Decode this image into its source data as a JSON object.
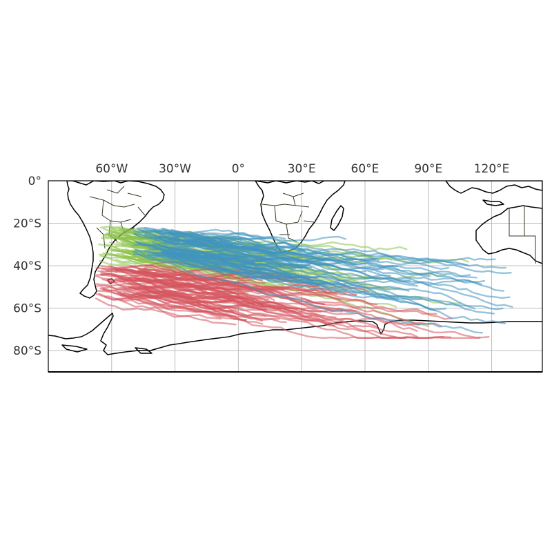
{
  "map": {
    "extent": {
      "lon_min": -90,
      "lon_max": 144,
      "lat_min": -90,
      "lat_max": 0
    },
    "x_ticks": [
      {
        "lon": -60,
        "label": "60°W"
      },
      {
        "lon": -30,
        "label": "30°W"
      },
      {
        "lon": 0,
        "label": "0°"
      },
      {
        "lon": 30,
        "label": "30°E"
      },
      {
        "lon": 60,
        "label": "60°E"
      },
      {
        "lon": 90,
        "label": "90°E"
      },
      {
        "lon": 120,
        "label": "120°E"
      }
    ],
    "y_ticks": [
      {
        "lat": 0,
        "label": "0°"
      },
      {
        "lat": -20,
        "label": "20°S"
      },
      {
        "lat": -40,
        "label": "40°S"
      },
      {
        "lat": -60,
        "label": "60°S"
      },
      {
        "lat": -80,
        "label": "80°S"
      }
    ],
    "gridlines": true,
    "colors": {
      "coastline": "#000000",
      "borders": "#2f3a20",
      "grid": "#bbbbbb",
      "red_tracks": "#d6545c",
      "green_tracks": "#8cc24a",
      "blue_tracks": "#3f93c0"
    },
    "track_groups": [
      {
        "color_key": "green_tracks",
        "count": 75,
        "genesis_lon": [
          -66,
          -44
        ],
        "genesis_lat": [
          -38,
          -22
        ]
      },
      {
        "color_key": "red_tracks",
        "count": 75,
        "genesis_lon": [
          -68,
          -44
        ],
        "genesis_lat": [
          -56,
          -40
        ]
      },
      {
        "color_key": "blue_tracks",
        "count": 75,
        "genesis_lon": [
          -50,
          -28
        ],
        "genesis_lat": [
          -36,
          -22
        ]
      }
    ]
  }
}
